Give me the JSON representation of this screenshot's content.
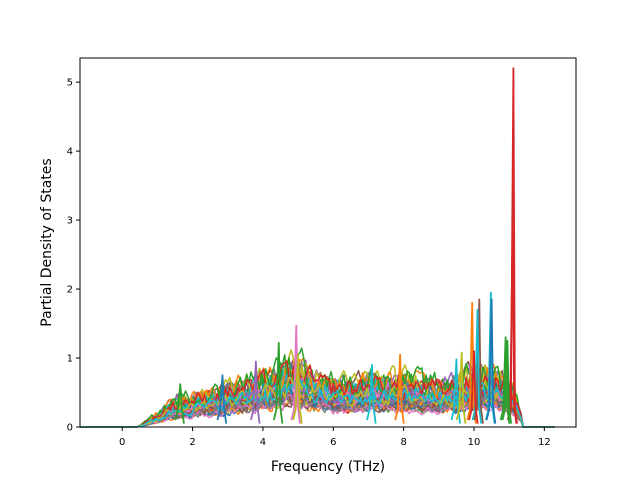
{
  "chart_data": {
    "type": "line",
    "xlabel": "Frequency (THz)",
    "ylabel": "Partial Density of States",
    "xlim": [
      -1.2,
      12.9
    ],
    "ylim": [
      0,
      5.35
    ],
    "xticks": [
      0,
      2,
      4,
      6,
      8,
      10,
      12
    ],
    "yticks": [
      0,
      1,
      2,
      3,
      4,
      5
    ],
    "grid": false,
    "colors": [
      "#1f77b4",
      "#ff7f0e",
      "#2ca02c",
      "#d62728",
      "#9467bd",
      "#8c564b",
      "#e377c2",
      "#7f7f7f",
      "#bcbd22",
      "#17becf"
    ],
    "series_count": 40,
    "envelope": {
      "x": [
        -1.2,
        0.4,
        0.8,
        1.5,
        2.0,
        2.5,
        3.0,
        3.5,
        4.0,
        4.5,
        5.0,
        5.5,
        6.0,
        6.5,
        7.0,
        7.5,
        8.0,
        8.5,
        9.0,
        9.5,
        10.0,
        10.5,
        11.0,
        11.2,
        11.4,
        12.3
      ],
      "y": [
        0,
        0,
        0.15,
        0.45,
        0.5,
        0.55,
        0.65,
        0.75,
        0.8,
        0.95,
        1.0,
        0.8,
        0.7,
        0.72,
        0.8,
        0.75,
        0.8,
        0.72,
        0.7,
        0.75,
        0.9,
        0.9,
        0.7,
        0.4,
        0,
        0
      ]
    },
    "peaks": [
      {
        "color": "#d62728",
        "x": 11.12,
        "y": 5.2
      },
      {
        "color": "#d62728",
        "x": 11.1,
        "y": 2.85
      },
      {
        "color": "#17becf",
        "x": 10.48,
        "y": 1.95
      },
      {
        "color": "#ff7f0e",
        "x": 9.95,
        "y": 1.8
      },
      {
        "color": "#8c564b",
        "x": 10.15,
        "y": 1.85
      },
      {
        "color": "#1f77b4",
        "x": 10.5,
        "y": 1.85
      },
      {
        "color": "#17becf",
        "x": 10.1,
        "y": 1.7
      },
      {
        "color": "#2ca02c",
        "x": 10.9,
        "y": 1.3
      },
      {
        "color": "#d62728",
        "x": 10.0,
        "y": 1.1
      },
      {
        "color": "#2ca02c",
        "x": 10.95,
        "y": 1.25
      },
      {
        "color": "#e377c2",
        "x": 4.95,
        "y": 1.47
      },
      {
        "color": "#2ca02c",
        "x": 4.45,
        "y": 1.22
      },
      {
        "color": "#bcbd22",
        "x": 5.0,
        "y": 1.05
      },
      {
        "color": "#ff7f0e",
        "x": 7.9,
        "y": 1.05
      },
      {
        "color": "#17becf",
        "x": 9.5,
        "y": 0.98
      },
      {
        "color": "#bcbd22",
        "x": 9.65,
        "y": 1.08
      },
      {
        "color": "#2ca02c",
        "x": 1.65,
        "y": 0.62
      },
      {
        "color": "#1f77b4",
        "x": 2.85,
        "y": 0.75
      },
      {
        "color": "#9467bd",
        "x": 3.8,
        "y": 0.95
      },
      {
        "color": "#17becf",
        "x": 7.1,
        "y": 0.9
      }
    ]
  }
}
